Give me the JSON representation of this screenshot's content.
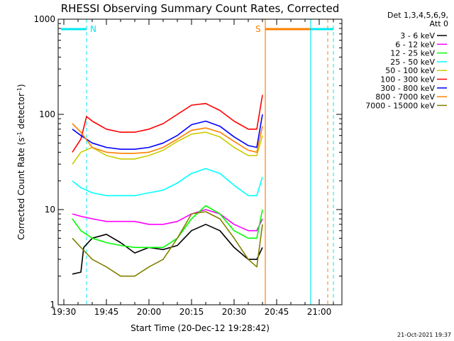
{
  "chart_data": {
    "type": "line",
    "title": "RHESSI Observing Summary Count Rates, Corrected",
    "xlabel": "Start Time (20-Dec-12 19:28:42)",
    "ylabel": "Corrected Count Rate (s",
    "ylabel_sup1": "-1",
    "ylabel_mid": " detector",
    "ylabel_sup2": "-1",
    "ylabel_end": ")",
    "y_scale": "log",
    "xlim": [
      "19:28",
      "21:08"
    ],
    "ylim": [
      1,
      1000
    ],
    "x_ticks": [
      "19:30",
      "19:45",
      "20:00",
      "20:15",
      "20:30",
      "20:45",
      "21:00"
    ],
    "y_ticks": [
      "1",
      "10",
      "100",
      "1000"
    ],
    "legend_header": [
      "Det 1,3,4,5,6,9,",
      "Att 0"
    ],
    "legend_position": "right",
    "footer_timestamp": "21-Oct-2021 19:37",
    "annotations": [
      {
        "label": "N",
        "color": "#00e8f0",
        "bar": [
          "19:29",
          "19:38"
        ],
        "dashed_line_at": "19:38"
      },
      {
        "label": "S",
        "color": "#ff8000",
        "bar": [
          "20:41",
          "21:03"
        ],
        "solid_line_at": "20:41",
        "dashed_line_at": "21:03"
      },
      {
        "label": "",
        "color": "#00e8f0",
        "bar": [
          "20:57",
          "21:05"
        ],
        "solid_line_at": "20:57",
        "dashed_line_at": "21:05"
      }
    ],
    "series": [
      {
        "name": "3 - 6 keV",
        "color": "#000000",
        "x": [
          "19:33",
          "19:36",
          "19:37",
          "19:40",
          "19:45",
          "19:50",
          "19:55",
          "20:00",
          "20:05",
          "20:10",
          "20:15",
          "20:20",
          "20:25",
          "20:30",
          "20:35",
          "20:38",
          "20:40"
        ],
        "y": [
          2.1,
          2.2,
          4,
          5,
          5.5,
          4.5,
          3.5,
          4,
          3.8,
          4.2,
          6,
          7,
          6,
          4,
          3,
          3,
          4
        ]
      },
      {
        "name": "6 - 12 keV",
        "color": "#ff00ff",
        "x": [
          "19:33",
          "19:36",
          "19:40",
          "19:45",
          "19:50",
          "19:55",
          "20:00",
          "20:05",
          "20:10",
          "20:15",
          "20:20",
          "20:25",
          "20:30",
          "20:35",
          "20:38",
          "20:40"
        ],
        "y": [
          9,
          8.5,
          8,
          7.5,
          7.5,
          7.5,
          7,
          7,
          7.5,
          9,
          10,
          9,
          7,
          6,
          6,
          8
        ]
      },
      {
        "name": "12 - 25 keV",
        "color": "#00ff00",
        "x": [
          "19:33",
          "19:36",
          "19:40",
          "19:45",
          "19:50",
          "19:55",
          "20:00",
          "20:05",
          "20:10",
          "20:15",
          "20:20",
          "20:25",
          "20:30",
          "20:35",
          "20:38",
          "20:40"
        ],
        "y": [
          8,
          6,
          5,
          4.5,
          4.2,
          4,
          4,
          4,
          5,
          8,
          11,
          9,
          6,
          5,
          5,
          10
        ]
      },
      {
        "name": "25 - 50 keV",
        "color": "#00ffff",
        "x": [
          "19:33",
          "19:36",
          "19:40",
          "19:45",
          "19:50",
          "19:55",
          "20:00",
          "20:05",
          "20:10",
          "20:15",
          "20:20",
          "20:25",
          "20:30",
          "20:35",
          "20:38",
          "20:40"
        ],
        "y": [
          20,
          17,
          15,
          14,
          14,
          14,
          15,
          16,
          19,
          24,
          27,
          24,
          18,
          14,
          14,
          22
        ]
      },
      {
        "name": "50 - 100 keV",
        "color": "#cccc00",
        "x": [
          "19:33",
          "19:36",
          "19:40",
          "19:45",
          "19:50",
          "19:55",
          "20:00",
          "20:05",
          "20:10",
          "20:15",
          "20:20",
          "20:25",
          "20:30",
          "20:35",
          "20:38",
          "20:40"
        ],
        "y": [
          30,
          40,
          45,
          37,
          34,
          34,
          37,
          42,
          52,
          62,
          65,
          58,
          45,
          37,
          37,
          60
        ]
      },
      {
        "name": "100 - 300 keV",
        "color": "#ff0000",
        "x": [
          "19:33",
          "19:36",
          "19:38",
          "19:40",
          "19:45",
          "19:50",
          "19:55",
          "20:00",
          "20:05",
          "20:10",
          "20:15",
          "20:20",
          "20:25",
          "20:30",
          "20:35",
          "20:38",
          "20:40"
        ],
        "y": [
          40,
          55,
          95,
          85,
          70,
          65,
          65,
          70,
          80,
          100,
          125,
          130,
          110,
          85,
          70,
          70,
          160
        ]
      },
      {
        "name": "300 - 800 keV",
        "color": "#0000ff",
        "x": [
          "19:33",
          "19:36",
          "19:40",
          "19:45",
          "19:50",
          "19:55",
          "20:00",
          "20:05",
          "20:10",
          "20:15",
          "20:20",
          "20:25",
          "20:30",
          "20:35",
          "20:38",
          "20:40"
        ],
        "y": [
          70,
          60,
          50,
          45,
          43,
          43,
          45,
          50,
          60,
          78,
          85,
          75,
          58,
          47,
          45,
          100
        ]
      },
      {
        "name": "800 - 7000 keV",
        "color": "#ff8000",
        "x": [
          "19:33",
          "19:36",
          "19:40",
          "19:45",
          "19:50",
          "19:55",
          "20:00",
          "20:05",
          "20:10",
          "20:15",
          "20:20",
          "20:25",
          "20:30",
          "20:35",
          "20:38",
          "20:40"
        ],
        "y": [
          80,
          65,
          45,
          40,
          39,
          39,
          40,
          45,
          55,
          68,
          72,
          65,
          52,
          42,
          40,
          75
        ]
      },
      {
        "name": "7000 - 15000 keV",
        "color": "#808000",
        "x": [
          "19:33",
          "19:36",
          "19:40",
          "19:45",
          "19:50",
          "19:55",
          "20:00",
          "20:05",
          "20:10",
          "20:15",
          "20:20",
          "20:25",
          "20:30",
          "20:35",
          "20:38",
          "20:40"
        ],
        "y": [
          5,
          4,
          3,
          2.5,
          2,
          2,
          2.5,
          3,
          5,
          9,
          9.5,
          8,
          5,
          3,
          2.5,
          7
        ]
      }
    ]
  }
}
